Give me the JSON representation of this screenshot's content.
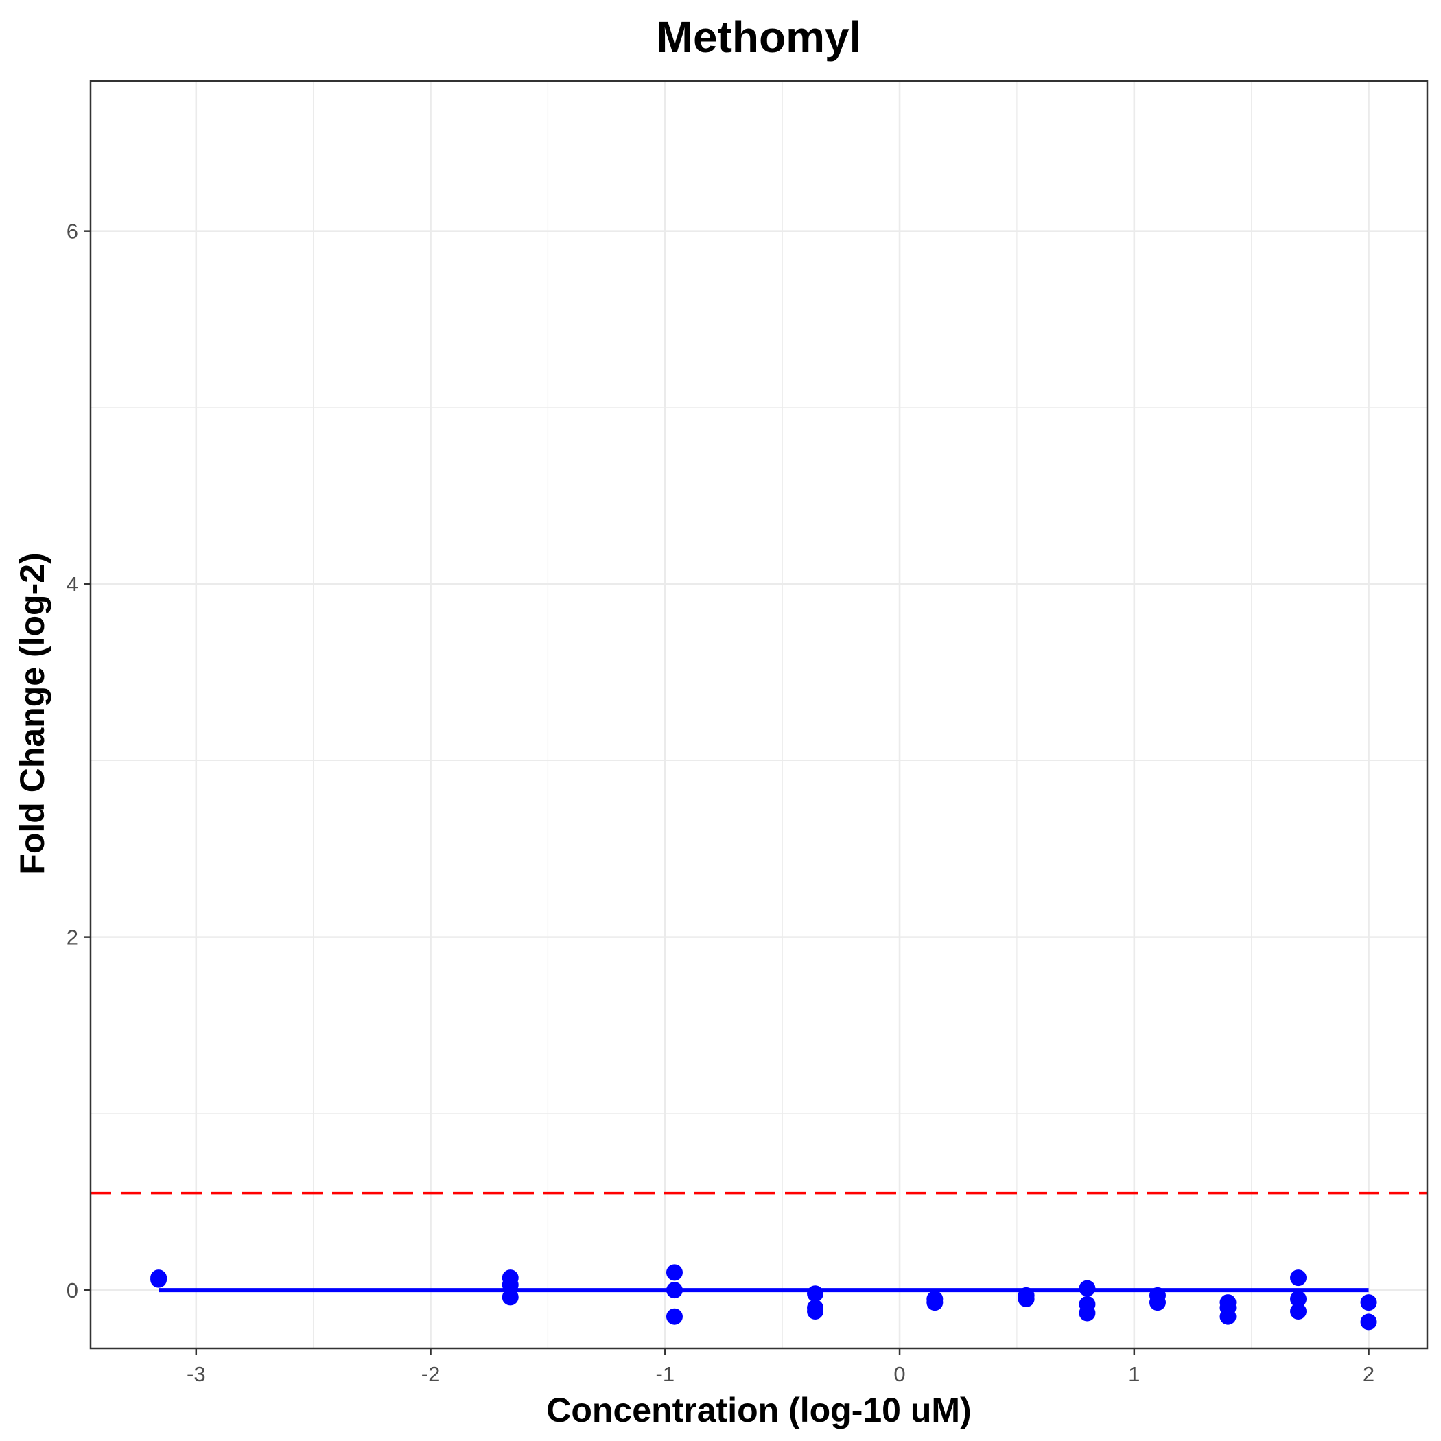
{
  "chart_data": {
    "type": "scatter",
    "title": "Methomyl",
    "xlabel": "Concentration (log-10 uM)",
    "ylabel": "Fold Change (log-2)",
    "xlim": [
      -3.45,
      2.25
    ],
    "ylim": [
      -0.33,
      6.85
    ],
    "x_ticks": [
      -3,
      -2,
      -1,
      0,
      1,
      2
    ],
    "y_ticks": [
      0,
      2,
      4,
      6
    ],
    "grid": true,
    "legend": "none",
    "colors": {
      "points": "#0000ff",
      "fit_line": "#0000ff",
      "threshold": "#ff0000",
      "grid": "#ebebeb",
      "panel_border": "#333333"
    },
    "threshold_y": 0.55,
    "fit": {
      "x": [
        -3.16,
        2.0
      ],
      "y": [
        0.0,
        0.0
      ]
    },
    "points": [
      {
        "x": -3.16,
        "y": 0.07
      },
      {
        "x": -3.16,
        "y": 0.06
      },
      {
        "x": -1.66,
        "y": 0.07
      },
      {
        "x": -1.66,
        "y": 0.03
      },
      {
        "x": -1.66,
        "y": -0.04
      },
      {
        "x": -0.96,
        "y": 0.1
      },
      {
        "x": -0.96,
        "y": 0.0
      },
      {
        "x": -0.96,
        "y": -0.15
      },
      {
        "x": -0.36,
        "y": -0.02
      },
      {
        "x": -0.36,
        "y": -0.1
      },
      {
        "x": -0.36,
        "y": -0.12
      },
      {
        "x": 0.15,
        "y": -0.05
      },
      {
        "x": 0.15,
        "y": -0.07
      },
      {
        "x": 0.54,
        "y": -0.03
      },
      {
        "x": 0.54,
        "y": -0.05
      },
      {
        "x": 0.8,
        "y": 0.01
      },
      {
        "x": 0.8,
        "y": -0.08
      },
      {
        "x": 0.8,
        "y": -0.13
      },
      {
        "x": 1.1,
        "y": -0.03
      },
      {
        "x": 1.1,
        "y": -0.07
      },
      {
        "x": 1.4,
        "y": -0.07
      },
      {
        "x": 1.4,
        "y": -0.1
      },
      {
        "x": 1.4,
        "y": -0.15
      },
      {
        "x": 1.7,
        "y": 0.07
      },
      {
        "x": 1.7,
        "y": -0.05
      },
      {
        "x": 1.7,
        "y": -0.12
      },
      {
        "x": 2.0,
        "y": -0.07
      },
      {
        "x": 2.0,
        "y": -0.18
      }
    ]
  }
}
